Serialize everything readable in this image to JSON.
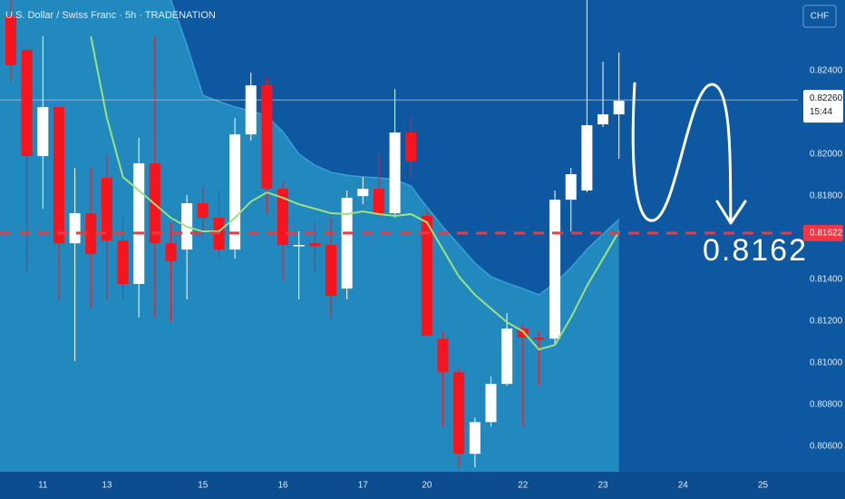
{
  "chart_data": {
    "type": "candlestick",
    "title": "U.S. Dollar / Swiss Franc · 5h · TRADENATION",
    "currency": "CHF",
    "up_color": "#ffffff",
    "down_color": "#f7141d",
    "candles": {
      "open": [
        0.82661,
        0.825,
        0.81991,
        0.82226,
        0.81573,
        0.81717,
        0.81887,
        0.81586,
        0.81378,
        0.81956,
        0.81573,
        0.81543,
        0.81765,
        0.81695,
        0.81543,
        0.82095,
        0.8233,
        0.81834,
        0.81565,
        0.81573,
        0.81565,
        0.81356,
        0.81799,
        0.81834,
        0.81717,
        0.82104,
        0.81704,
        0.81116,
        0.80955,
        0.80564,
        0.80716,
        0.80899,
        0.81164,
        0.81121,
        0.81116,
        0.81782,
        0.81826,
        0.82143,
        0.82191
      ],
      "high": [
        0.82739,
        0.825,
        0.82565,
        0.82226,
        0.81934,
        0.81934,
        0.82,
        0.81695,
        0.82078,
        0.82565,
        0.81673,
        0.81804,
        0.81847,
        0.81826,
        0.82174,
        0.82391,
        0.82369,
        0.81869,
        0.8163,
        0.81673,
        0.81695,
        0.81826,
        0.81891,
        0.82,
        0.82313,
        0.82182,
        0.8173,
        0.81151,
        0.80977,
        0.80738,
        0.80934,
        0.81238,
        0.81182,
        0.81151,
        0.81826,
        0.81934,
        0.82739,
        0.82443,
        0.82487
      ],
      "low": [
        0.82348,
        0.81434,
        0.81739,
        0.81304,
        0.81008,
        0.8126,
        0.81304,
        0.81304,
        0.81217,
        0.81217,
        0.81195,
        0.81304,
        0.81608,
        0.81499,
        0.81499,
        0.82065,
        0.81717,
        0.81391,
        0.81304,
        0.81434,
        0.81217,
        0.81304,
        0.8176,
        0.81695,
        0.81695,
        0.81891,
        0.81121,
        0.80694,
        0.80499,
        0.80499,
        0.80694,
        0.8089,
        0.80694,
        0.8089,
        0.81086,
        0.8163,
        0.81817,
        0.8213,
        0.81978
      ],
      "close": [
        0.82426,
        0.81991,
        0.82226,
        0.81573,
        0.81717,
        0.81521,
        0.81586,
        0.81378,
        0.81956,
        0.81573,
        0.81486,
        0.81765,
        0.81695,
        0.81543,
        0.82095,
        0.8233,
        0.81834,
        0.81565,
        0.81565,
        0.8156,
        0.81321,
        0.81791,
        0.81834,
        0.81717,
        0.82104,
        0.81965,
        0.8113,
        0.80955,
        0.80564,
        0.80716,
        0.80899,
        0.81164,
        0.81121,
        0.81112,
        0.81782,
        0.81904,
        0.82139,
        0.82191,
        0.82256
      ]
    },
    "moving_average": {
      "color": "#9be27f",
      "values": [
        null,
        null,
        null,
        null,
        null,
        0.82565,
        0.82174,
        0.81891,
        0.81826,
        0.8176,
        0.81695,
        0.81652,
        0.8163,
        0.8163,
        0.81695,
        0.81773,
        0.81817,
        0.81791,
        0.8176,
        0.81739,
        0.81717,
        0.81713,
        0.81726,
        0.81713,
        0.81704,
        0.81713,
        0.81673,
        0.81543,
        0.81413,
        0.81326,
        0.8126,
        0.81195,
        0.81151,
        0.81064,
        0.81086,
        0.81217,
        0.81369,
        0.81499,
        0.8163
      ]
    },
    "band": {
      "color": "#0d58a0",
      "values": [
        null,
        null,
        null,
        null,
        null,
        null,
        null,
        null,
        null,
        null,
        0.82739,
        0.82522,
        0.82282,
        0.82252,
        0.82226,
        0.82208,
        0.82182,
        0.82108,
        0.82,
        0.81947,
        0.81913,
        0.81899,
        0.81891,
        0.81887,
        0.81878,
        0.81847,
        0.81747,
        0.81652,
        0.81565,
        0.81478,
        0.81413,
        0.81382,
        0.81356,
        0.81326,
        0.81382,
        0.81456,
        0.81543,
        0.81617,
        0.81687
      ]
    },
    "xlim": [
      -0.68,
      49.18
    ],
    "xticks": [
      {
        "value": 2,
        "label": "11"
      },
      {
        "value": 6,
        "label": "13"
      },
      {
        "value": 12,
        "label": "15"
      },
      {
        "value": 17,
        "label": "16"
      },
      {
        "value": 22,
        "label": "17"
      },
      {
        "value": 26,
        "label": "20"
      },
      {
        "value": 32,
        "label": "22"
      },
      {
        "value": 37,
        "label": "23"
      },
      {
        "value": 42,
        "label": "24"
      },
      {
        "value": 47,
        "label": "25"
      }
    ],
    "ylim": [
      0.80478,
      0.82739
    ],
    "yticks": [
      {
        "value": 0.824,
        "label": "0.82400"
      },
      {
        "value": 0.82,
        "label": "0.82000"
      },
      {
        "value": 0.818,
        "label": "0.81800"
      },
      {
        "value": 0.814,
        "label": "0.81400"
      },
      {
        "value": 0.812,
        "label": "0.81200"
      },
      {
        "value": 0.81,
        "label": "0.81000"
      },
      {
        "value": 0.808,
        "label": "0.80800"
      },
      {
        "value": 0.806,
        "label": "0.80600"
      }
    ],
    "last_price": {
      "value": 0.8226,
      "label": "0.82260",
      "countdown": "15:44"
    },
    "target_line": {
      "value": 0.81622,
      "label": "0.81622",
      "color": "#f23645"
    },
    "annotation": "0.8162"
  }
}
